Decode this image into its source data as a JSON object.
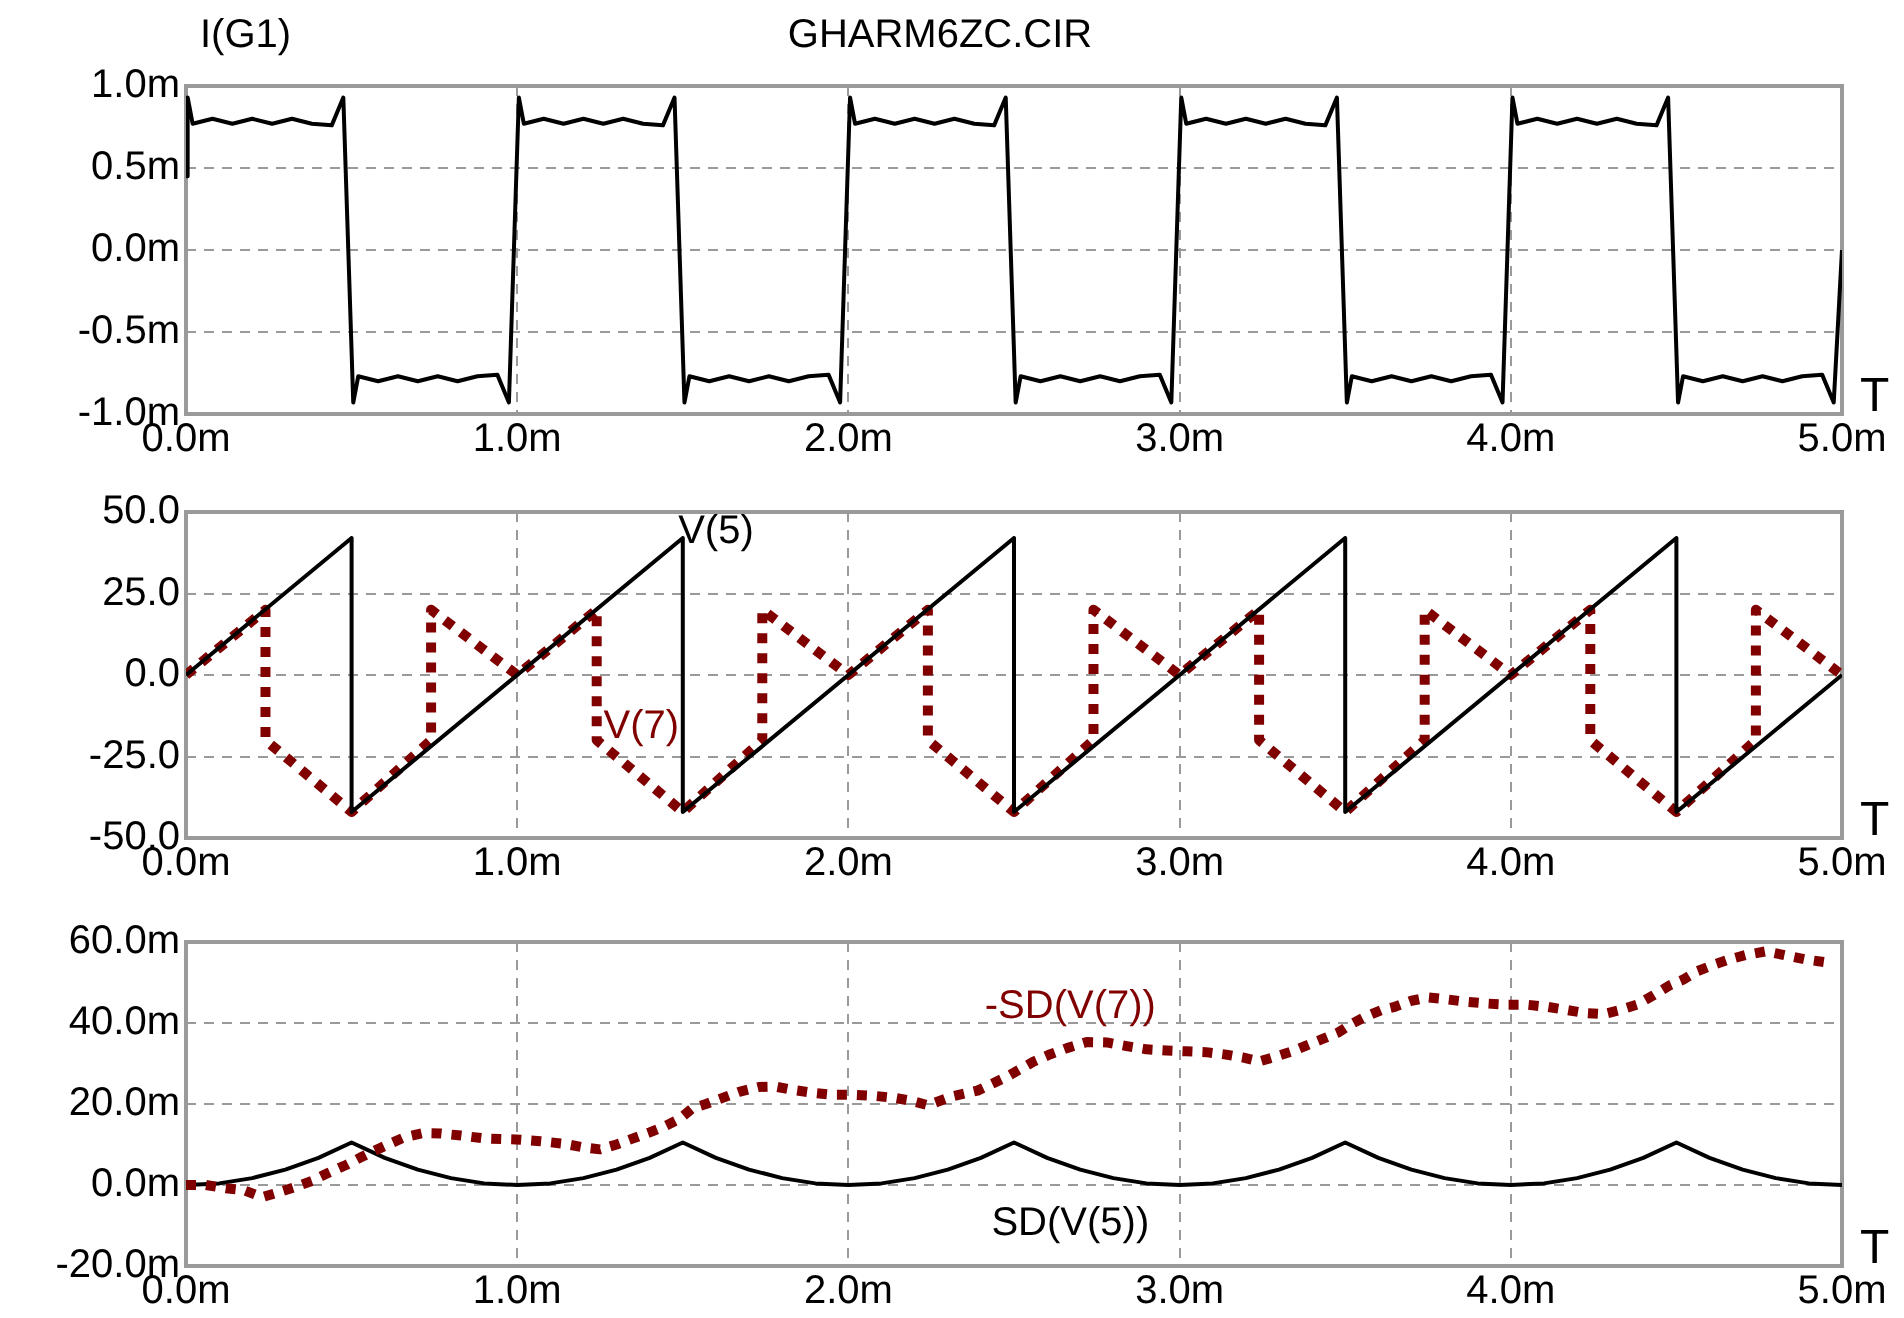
{
  "chart_data": [
    {
      "type": "line",
      "title": "GHARM6ZC.CIR",
      "ylabel": "I(G1)",
      "xlabel": "T",
      "grid": true,
      "legend": false,
      "marker": "none",
      "line_style": "solid",
      "xlim": [
        0,
        5
      ],
      "xticks": [
        {
          "value": 0,
          "label": "0.0m"
        },
        {
          "value": 1,
          "label": "1.0m"
        },
        {
          "value": 2,
          "label": "2.0m"
        },
        {
          "value": 3,
          "label": "3.0m"
        },
        {
          "value": 4,
          "label": "4.0m"
        },
        {
          "value": 5,
          "label": "5.0m"
        }
      ],
      "ylim": [
        -1,
        1
      ],
      "yticks": [
        {
          "value": -1,
          "label": "-1.0m"
        },
        {
          "value": -0.5,
          "label": "-0.5m"
        },
        {
          "value": 0,
          "label": "0.0m"
        },
        {
          "value": 0.5,
          "label": "0.5m"
        },
        {
          "value": 1,
          "label": "1.0m"
        }
      ],
      "x": [
        0,
        0.005,
        0.02,
        0.08,
        0.14,
        0.2,
        0.26,
        0.32,
        0.38,
        0.44,
        0.475,
        0.505,
        0.52,
        0.58,
        0.64,
        0.7,
        0.76,
        0.82,
        0.88,
        0.94,
        0.975,
        1.005,
        1.02,
        1.08,
        1.14,
        1.2,
        1.26,
        1.32,
        1.38,
        1.44,
        1.475,
        1.505,
        1.52,
        1.58,
        1.64,
        1.7,
        1.76,
        1.82,
        1.88,
        1.94,
        1.975,
        2.005,
        2.02,
        2.08,
        2.14,
        2.2,
        2.26,
        2.32,
        2.38,
        2.44,
        2.475,
        2.505,
        2.52,
        2.58,
        2.64,
        2.7,
        2.76,
        2.82,
        2.88,
        2.94,
        2.975,
        3.005,
        3.02,
        3.08,
        3.14,
        3.2,
        3.26,
        3.32,
        3.38,
        3.44,
        3.475,
        3.505,
        3.52,
        3.58,
        3.64,
        3.7,
        3.76,
        3.82,
        3.88,
        3.94,
        3.975,
        4.005,
        4.02,
        4.08,
        4.14,
        4.2,
        4.26,
        4.32,
        4.38,
        4.44,
        4.475,
        4.505,
        4.52,
        4.58,
        4.64,
        4.7,
        4.76,
        4.82,
        4.88,
        4.94,
        4.975,
        5
      ],
      "series": [
        {
          "color": "#000000",
          "values": [
            0.45,
            0.93,
            0.77,
            0.8,
            0.77,
            0.8,
            0.77,
            0.8,
            0.77,
            0.76,
            0.93,
            -0.93,
            -0.77,
            -0.8,
            -0.77,
            -0.8,
            -0.77,
            -0.8,
            -0.77,
            -0.76,
            -0.93,
            0.93,
            0.77,
            0.8,
            0.77,
            0.8,
            0.77,
            0.8,
            0.77,
            0.76,
            0.93,
            -0.93,
            -0.77,
            -0.8,
            -0.77,
            -0.8,
            -0.77,
            -0.8,
            -0.77,
            -0.76,
            -0.93,
            0.93,
            0.77,
            0.8,
            0.77,
            0.8,
            0.77,
            0.8,
            0.77,
            0.76,
            0.93,
            -0.93,
            -0.77,
            -0.8,
            -0.77,
            -0.8,
            -0.77,
            -0.8,
            -0.77,
            -0.76,
            -0.93,
            0.93,
            0.77,
            0.8,
            0.77,
            0.8,
            0.77,
            0.8,
            0.77,
            0.76,
            0.93,
            -0.93,
            -0.77,
            -0.8,
            -0.77,
            -0.8,
            -0.77,
            -0.8,
            -0.77,
            -0.76,
            -0.93,
            0.93,
            0.77,
            0.8,
            0.77,
            0.8,
            0.77,
            0.8,
            0.77,
            0.76,
            0.93,
            -0.93,
            -0.77,
            -0.8,
            -0.77,
            -0.8,
            -0.77,
            -0.8,
            -0.77,
            -0.76,
            -0.93,
            0
          ]
        }
      ]
    },
    {
      "type": "line",
      "xlabel": "T",
      "grid": true,
      "legend": false,
      "marker": "none",
      "xlim": [
        0,
        5
      ],
      "xticks": [
        {
          "value": 0,
          "label": "0.0m"
        },
        {
          "value": 1,
          "label": "1.0m"
        },
        {
          "value": 2,
          "label": "2.0m"
        },
        {
          "value": 3,
          "label": "3.0m"
        },
        {
          "value": 4,
          "label": "4.0m"
        },
        {
          "value": 5,
          "label": "5.0m"
        }
      ],
      "ylim": [
        -50,
        50
      ],
      "yticks": [
        {
          "value": -50,
          "label": "-50.0"
        },
        {
          "value": -25,
          "label": "-25.0"
        },
        {
          "value": 0,
          "label": "0.0"
        },
        {
          "value": 25,
          "label": "25.0"
        },
        {
          "value": 50,
          "label": "50.0"
        }
      ],
      "series": [
        {
          "name": "V(5)",
          "color": "#000000",
          "line_style": "solid",
          "x": [
            0,
            0.5,
            0.5,
            1.5,
            1.5,
            2.5,
            2.5,
            3.5,
            3.5,
            4.5,
            4.5,
            5
          ],
          "values": [
            0,
            42,
            -42,
            42,
            -42,
            42,
            -42,
            42,
            -42,
            42,
            -42,
            0
          ]
        },
        {
          "name": "V(7)",
          "color": "#800000",
          "line_style": "dotted",
          "x": [
            0,
            0.24,
            0.24,
            0.5,
            0.74,
            0.74,
            1,
            1.24,
            1.24,
            1.5,
            1.74,
            1.74,
            2,
            2.24,
            2.24,
            2.5,
            2.74,
            2.74,
            3,
            3.24,
            3.24,
            3.5,
            3.74,
            3.74,
            4,
            4.24,
            4.24,
            4.5,
            4.74,
            4.74,
            5
          ],
          "values": [
            0,
            20,
            -20,
            -42,
            -20,
            20,
            0,
            20,
            -20,
            -42,
            -20,
            20,
            0,
            20,
            -20,
            -42,
            -20,
            20,
            0,
            20,
            -20,
            -42,
            -20,
            20,
            0,
            20,
            -20,
            -42,
            -20,
            20,
            0
          ]
        }
      ]
    },
    {
      "type": "line",
      "xlabel": "T",
      "grid": true,
      "legend": false,
      "marker": "none",
      "xlim": [
        0,
        5
      ],
      "xticks": [
        {
          "value": 0,
          "label": "0.0m"
        },
        {
          "value": 1,
          "label": "1.0m"
        },
        {
          "value": 2,
          "label": "2.0m"
        },
        {
          "value": 3,
          "label": "3.0m"
        },
        {
          "value": 4,
          "label": "4.0m"
        },
        {
          "value": 5,
          "label": "5.0m"
        }
      ],
      "ylim": [
        -20,
        60
      ],
      "yticks": [
        {
          "value": -20,
          "label": "-20.0m"
        },
        {
          "value": 0,
          "label": "0.0m"
        },
        {
          "value": 20,
          "label": "20.0m"
        },
        {
          "value": 40,
          "label": "40.0m"
        },
        {
          "value": 60,
          "label": "60.0m"
        }
      ],
      "series": [
        {
          "name": "-SD(V(7))",
          "color": "#800000",
          "line_style": "dotted",
          "x": [
            0,
            0.06,
            0.12,
            0.175,
            0.23,
            0.28,
            0.33,
            0.38,
            0.43,
            0.485,
            0.525,
            0.565,
            0.61,
            0.66,
            0.715,
            0.77,
            0.83,
            0.9,
            1.01,
            1.07,
            1.14,
            1.2,
            1.25,
            1.3,
            1.35,
            1.4,
            1.44,
            1.49,
            1.53,
            1.57,
            1.62,
            1.67,
            1.73,
            1.78,
            1.83,
            1.89,
            1.95,
            2.01,
            2.08,
            2.14,
            2.19,
            2.24,
            2.31,
            2.39,
            2.48,
            2.56,
            2.61,
            2.66,
            2.72,
            2.78,
            2.84,
            2.9,
            2.96,
            3.02,
            3.08,
            3.14,
            3.19,
            3.24,
            3.29,
            3.34,
            3.39,
            3.43,
            3.48,
            3.52,
            3.56,
            3.61,
            3.65,
            3.7,
            3.75,
            3.81,
            3.87,
            3.93,
            3.99,
            4.05,
            4.11,
            4.17,
            4.22,
            4.28,
            4.33,
            4.38,
            4.43,
            4.48,
            4.52,
            4.56,
            4.61,
            4.66,
            4.71,
            4.77,
            4.83,
            4.89,
            4.95
          ],
          "values": [
            0,
            0,
            -0.8,
            -1.3,
            -3,
            -1.8,
            -0.5,
            1,
            3,
            5,
            6.7,
            8.3,
            10,
            11.8,
            12.8,
            12.7,
            12.2,
            11.5,
            11.2,
            10.8,
            10.2,
            9.3,
            8.8,
            10,
            11.5,
            13,
            14.3,
            16.3,
            19,
            20,
            21.5,
            23,
            24.2,
            24.3,
            23.5,
            22.8,
            22.3,
            22.3,
            22,
            21.5,
            20.8,
            19.7,
            21.8,
            23.3,
            26.8,
            30.5,
            32.3,
            33.8,
            35.3,
            35.2,
            34.3,
            33.5,
            33.2,
            33,
            32.8,
            32.2,
            31.5,
            30.5,
            31.7,
            33,
            34.7,
            36,
            37.7,
            39.8,
            41.5,
            43.2,
            44,
            45.5,
            46.3,
            45.8,
            45.2,
            44.8,
            44.5,
            44.5,
            44,
            43.2,
            42.5,
            42.2,
            43.2,
            44.5,
            46.8,
            49.3,
            50.7,
            52.7,
            54.3,
            55.7,
            56.8,
            57.7,
            56.7,
            55.7,
            55
          ]
        },
        {
          "name": "SD(V(5))",
          "color": "#000000",
          "line_style": "solid",
          "x": [
            0,
            0.1,
            0.2,
            0.3,
            0.4,
            0.5,
            0.6,
            0.7,
            0.8,
            0.9,
            1,
            1.1,
            1.2,
            1.3,
            1.4,
            1.5,
            1.6,
            1.7,
            1.8,
            1.9,
            2,
            2.1,
            2.2,
            2.3,
            2.4,
            2.5,
            2.6,
            2.7,
            2.8,
            2.9,
            3,
            3.1,
            3.2,
            3.3,
            3.4,
            3.5,
            3.6,
            3.7,
            3.8,
            3.9,
            4,
            4.1,
            4.2,
            4.3,
            4.4,
            4.5,
            4.6,
            4.7,
            4.8,
            4.9,
            5
          ],
          "values": [
            0,
            0.4,
            1.7,
            3.8,
            6.7,
            10.5,
            6.7,
            3.8,
            1.7,
            0.4,
            0,
            0.4,
            1.7,
            3.8,
            6.7,
            10.5,
            6.7,
            3.8,
            1.7,
            0.4,
            0,
            0.4,
            1.7,
            3.8,
            6.7,
            10.5,
            6.7,
            3.8,
            1.7,
            0.4,
            0,
            0.4,
            1.7,
            3.8,
            6.7,
            10.5,
            6.7,
            3.8,
            1.7,
            0.4,
            0,
            0.4,
            1.7,
            3.8,
            6.7,
            10.5,
            6.7,
            3.8,
            1.7,
            0.4,
            0
          ]
        }
      ]
    }
  ]
}
